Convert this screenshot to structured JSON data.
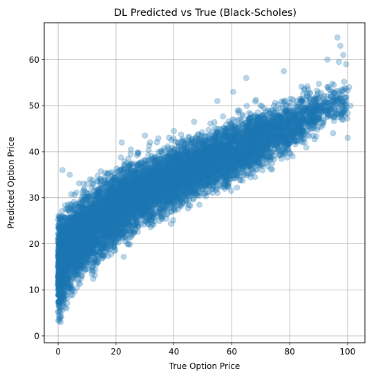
{
  "colors": {
    "marker": "#1f77b4",
    "grid": "#b0b0b0",
    "axis": "#000000",
    "background": "#ffffff"
  },
  "chart_data": {
    "type": "scatter",
    "title": "DL Predicted vs True (Black-Scholes)",
    "xlabel": "True Option Price",
    "ylabel": "Predicted Option Price",
    "xlim": [
      -4.8,
      106
    ],
    "ylim": [
      -1.5,
      68
    ],
    "xticks": [
      0,
      20,
      40,
      60,
      80,
      100
    ],
    "yticks": [
      0,
      10,
      20,
      30,
      40,
      50,
      60
    ],
    "grid": true,
    "legend": "none",
    "marker_alpha": 0.3,
    "approx_point_count": 20000,
    "density_bands": [
      {
        "x": 0.0,
        "y_low": 1.5,
        "y_high": 28.0,
        "weight": 3.0
      },
      {
        "x": 1.0,
        "y_low": 3.0,
        "y_high": 29.0,
        "weight": 2.2
      },
      {
        "x": 2.5,
        "y_low": 5.0,
        "y_high": 30.0,
        "weight": 1.8
      },
      {
        "x": 5.0,
        "y_low": 8.0,
        "y_high": 31.5,
        "weight": 1.6
      },
      {
        "x": 10.0,
        "y_low": 11.5,
        "y_high": 34.0,
        "weight": 1.5
      },
      {
        "x": 15.0,
        "y_low": 14.5,
        "y_high": 36.5,
        "weight": 1.4
      },
      {
        "x": 20.0,
        "y_low": 17.0,
        "y_high": 38.5,
        "weight": 1.35
      },
      {
        "x": 30.0,
        "y_low": 21.5,
        "y_high": 41.0,
        "weight": 1.3
      },
      {
        "x": 40.0,
        "y_low": 26.0,
        "y_high": 43.0,
        "weight": 1.2
      },
      {
        "x": 50.0,
        "y_low": 28.5,
        "y_high": 46.0,
        "weight": 1.1
      },
      {
        "x": 60.0,
        "y_low": 31.0,
        "y_high": 49.0,
        "weight": 1.0
      },
      {
        "x": 70.0,
        "y_low": 35.0,
        "y_high": 51.0,
        "weight": 0.8
      },
      {
        "x": 80.0,
        "y_low": 38.0,
        "y_high": 53.0,
        "weight": 0.6
      },
      {
        "x": 90.0,
        "y_low": 43.0,
        "y_high": 55.0,
        "weight": 0.3
      },
      {
        "x": 100.0,
        "y_low": 46.0,
        "y_high": 57.0,
        "weight": 0.1
      }
    ],
    "outliers": [
      [
        96.5,
        64.8
      ],
      [
        97.5,
        63.0
      ],
      [
        98.5,
        61.0
      ],
      [
        97.0,
        59.5
      ],
      [
        99.5,
        59.0
      ],
      [
        93.0,
        60.0
      ],
      [
        78.0,
        57.5
      ],
      [
        65.0,
        56.0
      ],
      [
        60.5,
        53.0
      ],
      [
        55.0,
        51.0
      ],
      [
        101.0,
        50.0
      ],
      [
        100.5,
        54.0
      ],
      [
        1.5,
        36.0
      ],
      [
        4.0,
        35.0
      ],
      [
        22.0,
        42.0
      ],
      [
        30.0,
        43.5
      ],
      [
        40.0,
        44.5
      ],
      [
        47.0,
        46.5
      ],
      [
        100.0,
        43.0
      ],
      [
        95.0,
        44.0
      ],
      [
        98.0,
        47.0
      ],
      [
        81.0,
        39.0
      ],
      [
        80.0,
        43.0
      ]
    ]
  }
}
